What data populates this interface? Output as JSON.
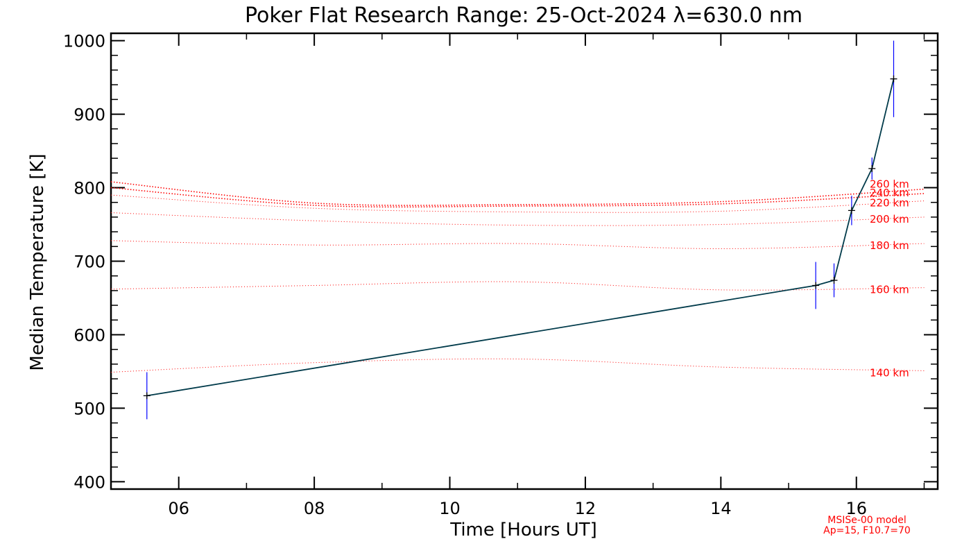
{
  "chart_data": {
    "type": "line",
    "title": "Poker Flat Research Range: 25-Oct-2024 λ=630.0 nm",
    "xlabel": "Time [Hours UT]",
    "ylabel": "Median Temperature [K]",
    "xlim": [
      5.0,
      17.2
    ],
    "ylim": [
      390,
      1010
    ],
    "x_ticks": [
      6,
      8,
      10,
      12,
      14,
      16
    ],
    "x_tick_labels": [
      "06",
      "08",
      "10",
      "12",
      "14",
      "16"
    ],
    "y_ticks": [
      400,
      500,
      600,
      700,
      800,
      900,
      1000
    ],
    "y_tick_labels": [
      "400",
      "500",
      "600",
      "700",
      "800",
      "900",
      "1000"
    ],
    "grid": false,
    "measured": {
      "x": [
        5.53,
        15.4,
        15.67,
        15.93,
        16.23,
        16.55
      ],
      "y": [
        517,
        667,
        674,
        769,
        826,
        948
      ],
      "err": [
        32,
        32,
        23,
        20,
        15,
        52
      ]
    },
    "model_series": [
      {
        "name": "140 km",
        "x": [
          5.0,
          8.0,
          11.0,
          14.0,
          17.0
        ],
        "y": [
          549,
          562,
          567,
          556,
          551
        ]
      },
      {
        "name": "160 km",
        "x": [
          5.0,
          8.0,
          11.0,
          14.0,
          17.0
        ],
        "y": [
          662,
          667,
          672,
          661,
          664
        ]
      },
      {
        "name": "180 km",
        "x": [
          5.0,
          8.0,
          11.0,
          14.0,
          17.0
        ],
        "y": [
          728,
          722,
          724,
          717,
          724
        ]
      },
      {
        "name": "200 km",
        "x": [
          5.0,
          8.0,
          11.0,
          14.0,
          17.0
        ],
        "y": [
          766,
          755,
          749,
          750,
          760
        ]
      },
      {
        "name": "220 km",
        "x": [
          5.0,
          8.0,
          11.0,
          14.0,
          17.0
        ],
        "y": [
          790,
          772,
          767,
          768,
          782
        ]
      },
      {
        "name": "240 km",
        "x": [
          5.0,
          8.0,
          11.0,
          14.0,
          17.0
        ],
        "y": [
          800,
          776,
          775,
          778,
          792
        ]
      },
      {
        "name": "260 km",
        "x": [
          5.0,
          8.0,
          11.0,
          14.0,
          17.0
        ],
        "y": [
          808,
          779,
          777,
          781,
          798
        ]
      }
    ],
    "annotation": [
      "MSISe-00 model",
      "Ap=15, F10.7=70"
    ],
    "colors": {
      "line": "#003a4a",
      "marker": "#000000",
      "errorbar": "#0000ff",
      "model": "#ff0000"
    }
  }
}
